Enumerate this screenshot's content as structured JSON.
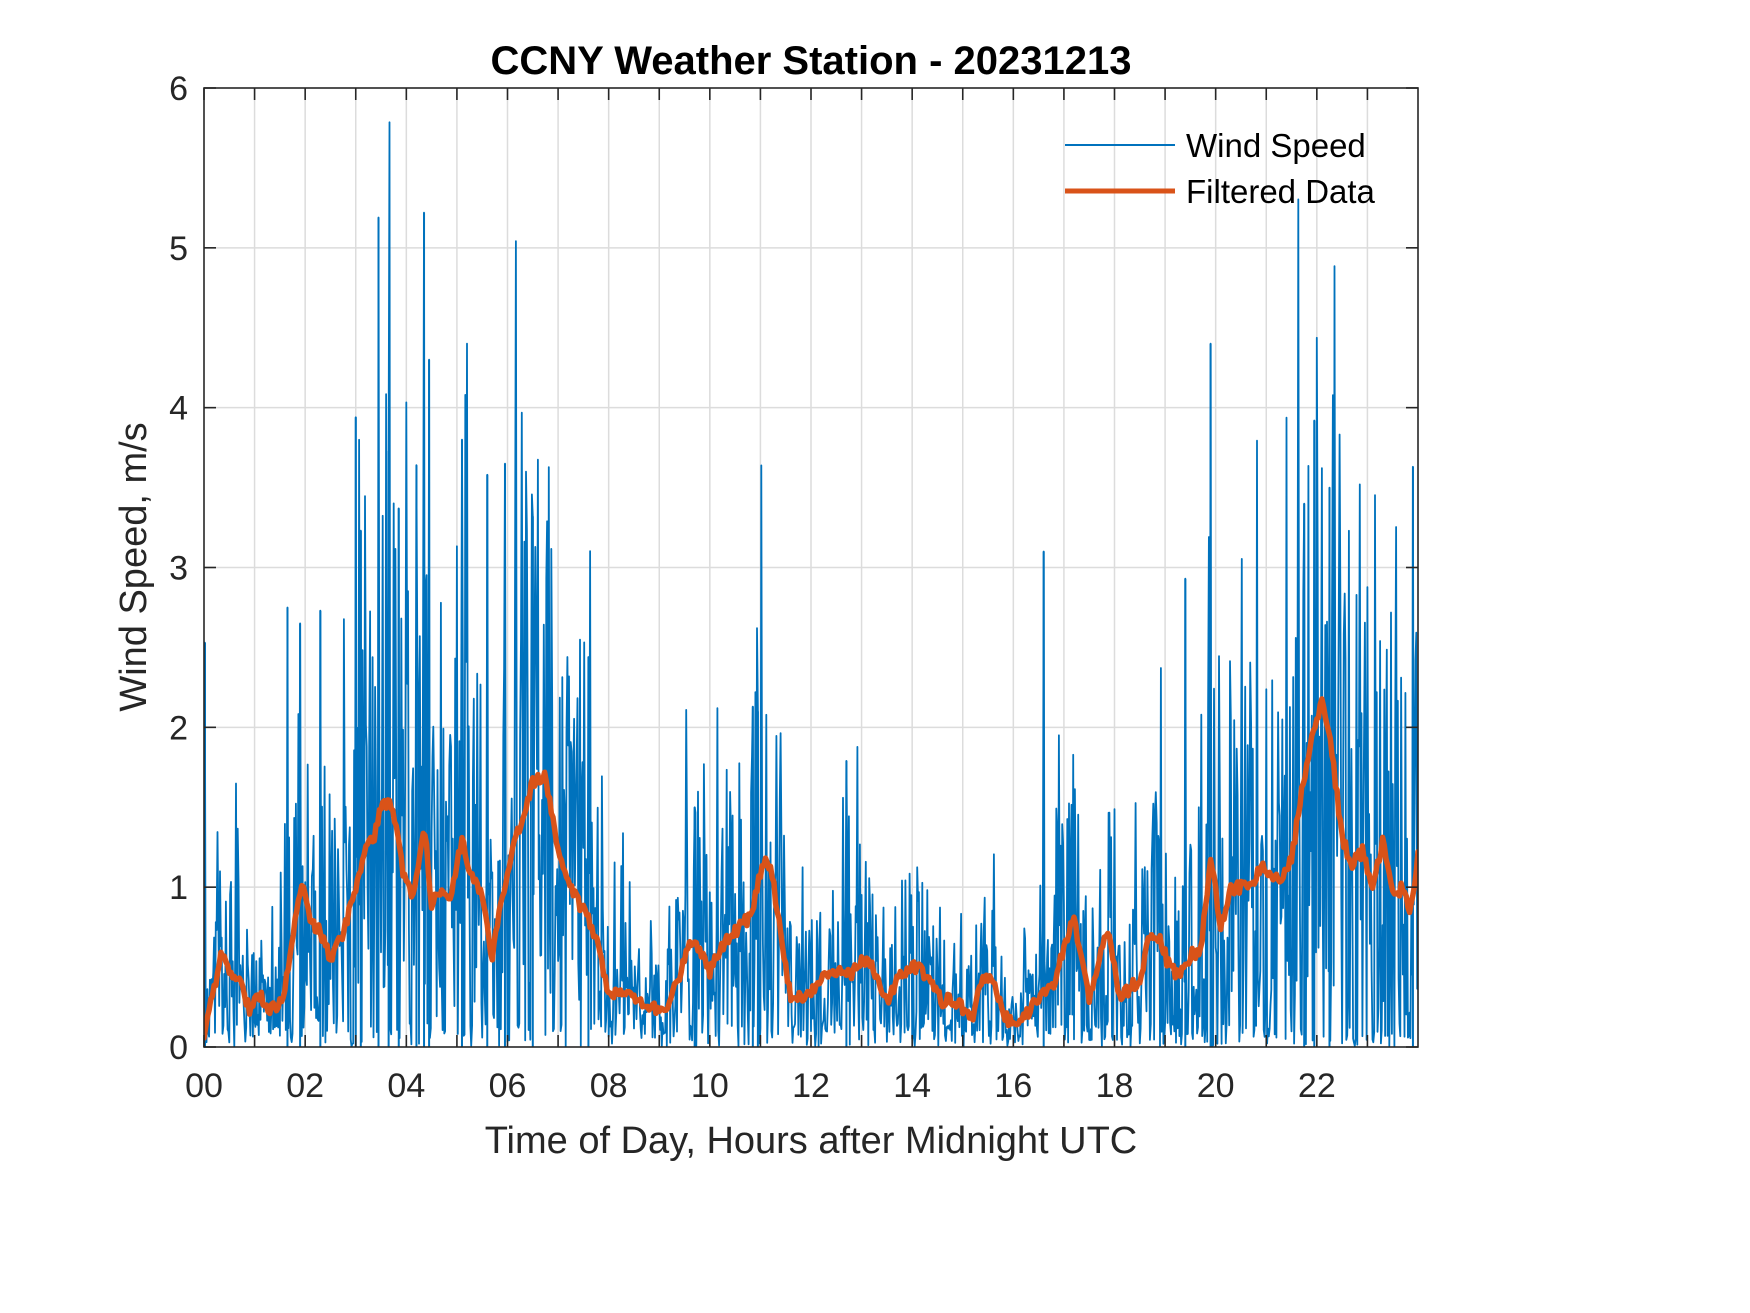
{
  "chart_data": {
    "type": "line",
    "title": "CCNY Weather Station - 20231213",
    "xlabel": "Time of Day, Hours after Midnight UTC",
    "ylabel": "Wind Speed, m/s",
    "xlim": [
      0,
      24
    ],
    "ylim": [
      0,
      6
    ],
    "grid": true,
    "legend_position": "top-right",
    "x_ticks": [
      0,
      2,
      4,
      6,
      8,
      10,
      12,
      14,
      16,
      18,
      20,
      22
    ],
    "x_tick_labels": [
      "00",
      "02",
      "04",
      "06",
      "08",
      "10",
      "12",
      "14",
      "16",
      "18",
      "20",
      "22"
    ],
    "x_minor_grid_hours": [
      1,
      3,
      5,
      7,
      9,
      11,
      13,
      15,
      17,
      19,
      21,
      23
    ],
    "y_ticks": [
      0,
      1,
      2,
      3,
      4,
      5,
      6
    ],
    "y_tick_labels": [
      "0",
      "1",
      "2",
      "3",
      "4",
      "5",
      "6"
    ],
    "series": [
      {
        "name": "Wind Speed",
        "color": "#0072BD",
        "style": "thin",
        "description": "Raw high-frequency wind speed samples; dense noisy trace oscillating between 0 and peaks",
        "notable_peaks": {
          "x": [
            0.02,
            1.65,
            1.9,
            2.3,
            3.0,
            3.1,
            3.45,
            3.65,
            3.85,
            4.2,
            4.35,
            4.45,
            5.1,
            5.6,
            5.95,
            6.5,
            7.6,
            9.7,
            10.85,
            10.95,
            12.7,
            16.6,
            19.4,
            19.9,
            21.75,
            21.95,
            22.25,
            23.9
          ],
          "y": [
            2.53,
            2.75,
            2.65,
            2.73,
            3.94,
            3.23,
            5.19,
            3.73,
            3.37,
            3.64,
            5.22,
            4.3,
            3.8,
            3.58,
            3.65,
            3.32,
            2.44,
            1.5,
            2.13,
            2.1,
            1.79,
            3.1,
            2.93,
            4.4,
            3.4,
            3.92,
            3.5,
            3.63
          ]
        }
      },
      {
        "name": "Filtered Data",
        "color": "#D95319",
        "style": "thick",
        "x": [
          0.0,
          0.15,
          0.35,
          0.5,
          0.7,
          0.9,
          1.1,
          1.3,
          1.55,
          1.75,
          1.95,
          2.1,
          2.3,
          2.5,
          2.75,
          2.95,
          3.15,
          3.35,
          3.55,
          3.75,
          3.95,
          4.15,
          4.35,
          4.5,
          4.7,
          4.9,
          5.1,
          5.3,
          5.5,
          5.7,
          5.9,
          6.1,
          6.3,
          6.5,
          6.75,
          7.0,
          7.2,
          7.4,
          7.6,
          7.8,
          8.0,
          8.2,
          8.5,
          8.8,
          9.1,
          9.4,
          9.6,
          9.8,
          10.0,
          10.2,
          10.5,
          10.8,
          11.05,
          11.2,
          11.4,
          11.6,
          11.9,
          12.2,
          12.5,
          12.8,
          13.0,
          13.2,
          13.5,
          13.7,
          14.0,
          14.3,
          14.6,
          14.8,
          15.0,
          15.2,
          15.4,
          15.6,
          15.9,
          16.2,
          16.5,
          16.8,
          17.0,
          17.2,
          17.5,
          17.7,
          17.9,
          18.1,
          18.3,
          18.5,
          18.7,
          18.9,
          19.1,
          19.3,
          19.5,
          19.7,
          19.9,
          20.1,
          20.3,
          20.5,
          20.7,
          20.9,
          21.1,
          21.3,
          21.5,
          21.7,
          21.9,
          22.1,
          22.3,
          22.5,
          22.7,
          22.9,
          23.1,
          23.3,
          23.5,
          23.7,
          23.85,
          24.0
        ],
        "y": [
          0.05,
          0.3,
          0.58,
          0.48,
          0.42,
          0.24,
          0.33,
          0.24,
          0.28,
          0.7,
          1.02,
          0.78,
          0.72,
          0.55,
          0.7,
          0.95,
          1.2,
          1.3,
          1.55,
          1.48,
          1.05,
          0.95,
          1.4,
          0.9,
          1.0,
          0.95,
          1.32,
          1.05,
          0.95,
          0.55,
          0.95,
          1.25,
          1.45,
          1.65,
          1.7,
          1.2,
          1.05,
          0.9,
          0.82,
          0.62,
          0.33,
          0.36,
          0.3,
          0.26,
          0.22,
          0.45,
          0.66,
          0.62,
          0.47,
          0.62,
          0.72,
          0.82,
          1.15,
          1.15,
          0.72,
          0.3,
          0.33,
          0.42,
          0.48,
          0.45,
          0.55,
          0.5,
          0.28,
          0.42,
          0.52,
          0.45,
          0.28,
          0.3,
          0.24,
          0.2,
          0.44,
          0.4,
          0.15,
          0.18,
          0.3,
          0.4,
          0.62,
          0.8,
          0.3,
          0.58,
          0.72,
          0.3,
          0.37,
          0.42,
          0.72,
          0.68,
          0.48,
          0.45,
          0.58,
          0.6,
          1.18,
          0.75,
          0.98,
          1.0,
          1.02,
          1.12,
          1.07,
          1.05,
          1.17,
          1.6,
          1.92,
          2.15,
          1.85,
          1.3,
          1.15,
          1.22,
          1.02,
          1.28,
          0.95,
          1.0,
          0.83,
          1.2
        ]
      }
    ]
  }
}
